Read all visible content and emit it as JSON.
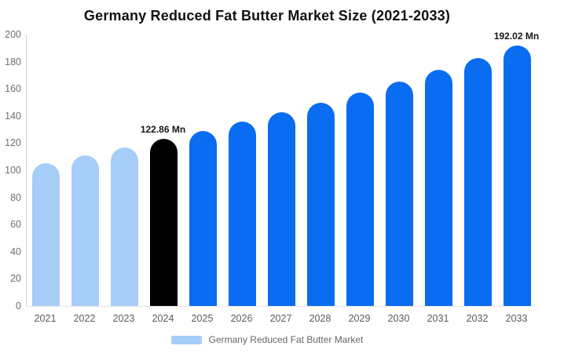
{
  "chart_data": {
    "type": "bar",
    "title": "Germany Reduced Fat Butter Market Size (2021-2033)",
    "categories": [
      "2021",
      "2022",
      "2023",
      "2024",
      "2025",
      "2026",
      "2027",
      "2028",
      "2029",
      "2030",
      "2031",
      "2032",
      "2033"
    ],
    "values": [
      105.0,
      111.2,
      116.9,
      122.86,
      129.1,
      135.7,
      142.6,
      149.8,
      157.4,
      165.4,
      173.9,
      182.7,
      192.02
    ],
    "unit": "Mn",
    "color_groups": [
      "past",
      "past",
      "past",
      "current",
      "forecast",
      "forecast",
      "forecast",
      "forecast",
      "forecast",
      "forecast",
      "forecast",
      "forecast",
      "forecast"
    ],
    "colors": {
      "past": "#a7cdf9",
      "current": "#000000",
      "forecast": "#0a6cf0"
    },
    "annotations": [
      {
        "category": "2024",
        "text": "122.86 Mn"
      },
      {
        "category": "2033",
        "text": "192.02 Mn"
      }
    ],
    "xlabel": "",
    "ylabel": "",
    "ylim": [
      0,
      200
    ],
    "y_ticks": [
      0,
      20,
      40,
      60,
      80,
      100,
      120,
      140,
      160,
      180,
      200
    ],
    "grid": false,
    "legend": {
      "position": "bottom",
      "items": [
        {
          "label": "Germany Reduced Fat Butter Market",
          "color": "#a7cdf9"
        }
      ]
    }
  }
}
